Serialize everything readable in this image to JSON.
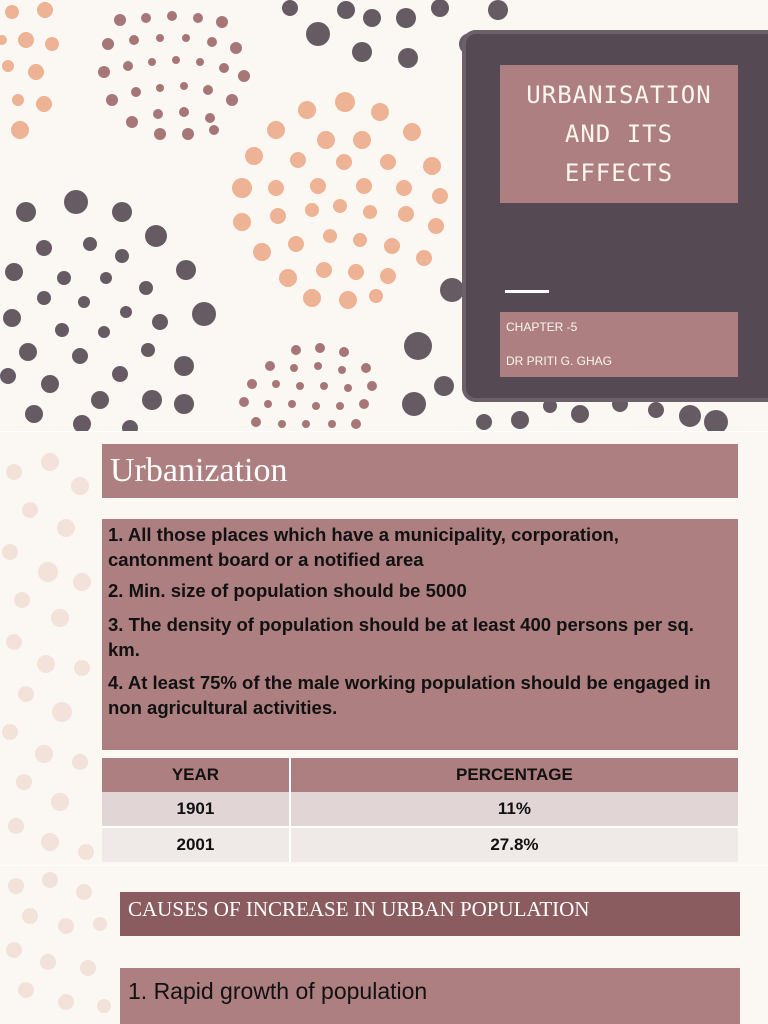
{
  "title_slide": {
    "title": "URBANISATION\nAND ITS\nEFFECTS",
    "chapter": "CHAPTER -5",
    "author": "DR PRITI G. GHAG",
    "colors": {
      "card": "#554a53",
      "box": "#ad7f80",
      "dot_dark": "#675b63",
      "dot_peach": "#eeb394",
      "dot_rose": "#a77777"
    }
  },
  "definition_slide": {
    "heading": "Urbanization",
    "criteria": [
      "1. All those places which have a municipality, corporation, cantonment board or a notified area",
      "2. Min. size of population should be 5000",
      "3. The density of population should be at least 400 persons per sq. km.",
      "4. At least 75% of the male working population should be engaged in non agricultural activities."
    ],
    "table": {
      "headers": [
        "YEAR",
        "PERCENTAGE"
      ],
      "rows": [
        [
          "1901",
          "11%"
        ],
        [
          "2001",
          "27.8%"
        ]
      ]
    }
  },
  "causes_slide": {
    "heading": "CAUSES OF INCREASE IN URBAN POPULATION",
    "point": "1. Rapid growth of population"
  }
}
